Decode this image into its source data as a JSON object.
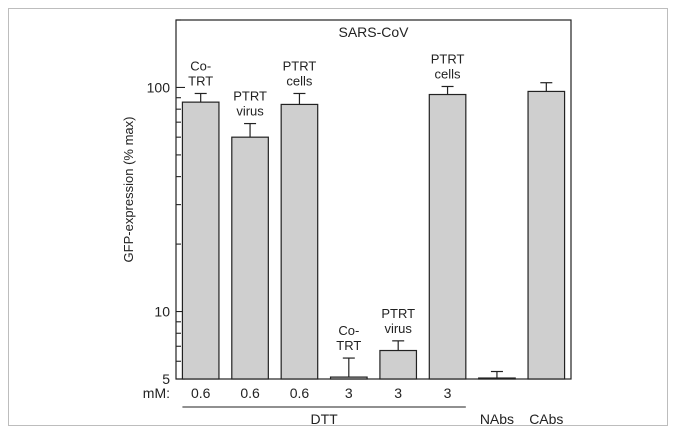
{
  "chart_data": {
    "type": "bar",
    "title": "SARS-CoV",
    "ylabel": "GFP-expression (% max)",
    "yscale": "log",
    "ylim": [
      5,
      200
    ],
    "yticks": [
      5,
      10,
      100
    ],
    "yticklabels": [
      "5",
      "10",
      "100"
    ],
    "mm_label": "mM:",
    "bars": [
      {
        "annotation": [
          "Co-",
          "TRT"
        ],
        "concentration": "0.6",
        "value": 86,
        "error": 8
      },
      {
        "annotation": [
          "PTRT",
          "virus"
        ],
        "concentration": "0.6",
        "value": 60,
        "error": 9
      },
      {
        "annotation": [
          "PTRT",
          "cells"
        ],
        "concentration": "0.6",
        "value": 84,
        "error": 10
      },
      {
        "annotation": [
          "Co-",
          "TRT"
        ],
        "concentration": "3",
        "value": 5.1,
        "error": 1.1
      },
      {
        "annotation": [
          "PTRT",
          "virus"
        ],
        "concentration": "3",
        "value": 6.7,
        "error": 0.7
      },
      {
        "annotation": [
          "PTRT",
          "cells"
        ],
        "concentration": "3",
        "value": 93,
        "error": 8
      },
      {
        "annotation": [],
        "concentration": "",
        "value": 5.05,
        "error": 0.35
      },
      {
        "annotation": [],
        "concentration": "",
        "value": 96,
        "error": 9
      }
    ],
    "groups": [
      {
        "label": "DTT",
        "bars": [
          0,
          5
        ]
      },
      {
        "label": "NAbs",
        "bars": [
          6,
          6
        ]
      },
      {
        "label": "CAbs",
        "bars": [
          7,
          7
        ]
      }
    ],
    "bar_color": "#cfcfcf",
    "grid": false
  }
}
